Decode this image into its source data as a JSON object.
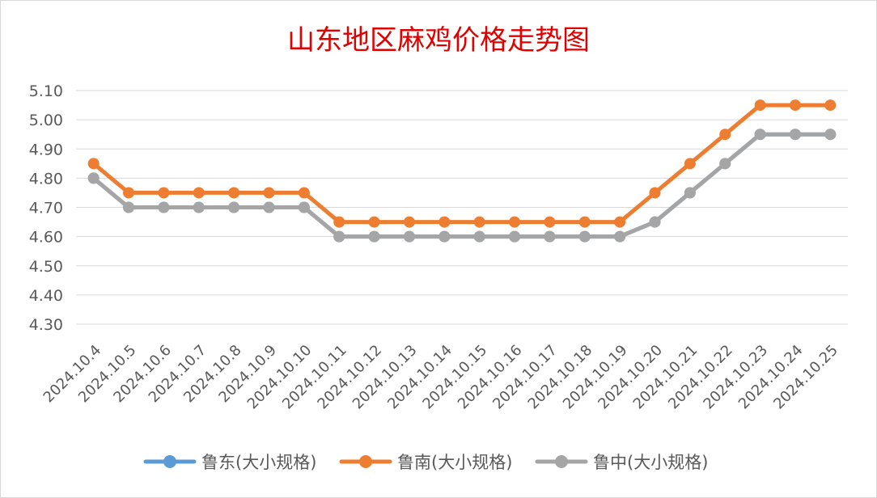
{
  "chart_data": {
    "type": "line",
    "title": "山东地区麻鸡价格走势图",
    "categories": [
      "2024.10.4",
      "2024.10.5",
      "2024.10.6",
      "2024.10.7",
      "2024.10.8",
      "2024.10.9",
      "2024.10.10",
      "2024.10.11",
      "2024.10.12",
      "2024.10.13",
      "2024.10.14",
      "2024.10.15",
      "2024.10.16",
      "2024.10.17",
      "2024.10.18",
      "2024.10.19",
      "2024.10.20",
      "2024.10.21",
      "2024.10.22",
      "2024.10.23",
      "2024.10.24",
      "2024.10.25"
    ],
    "yticks": [
      "4.30",
      "4.40",
      "4.50",
      "4.60",
      "4.70",
      "4.80",
      "4.90",
      "5.00",
      "5.10"
    ],
    "ylim": [
      4.3,
      5.1
    ],
    "grid": true,
    "legend_position": "bottom",
    "series": [
      {
        "name": "鲁东(大小规格)",
        "color": "#5b9bd5",
        "values": [
          4.8,
          4.7,
          4.7,
          4.7,
          4.7,
          4.7,
          4.7,
          4.6,
          4.6,
          4.6,
          4.6,
          4.6,
          4.6,
          4.6,
          4.6,
          4.6,
          4.65,
          4.75,
          4.85,
          4.95,
          4.95,
          4.95
        ]
      },
      {
        "name": "鲁南(大小规格)",
        "color": "#ed7d31",
        "values": [
          4.85,
          4.75,
          4.75,
          4.75,
          4.75,
          4.75,
          4.75,
          4.65,
          4.65,
          4.65,
          4.65,
          4.65,
          4.65,
          4.65,
          4.65,
          4.65,
          4.75,
          4.85,
          4.95,
          5.05,
          5.05,
          5.05
        ]
      },
      {
        "name": "鲁中(大小规格)",
        "color": "#a5a5a5",
        "values": [
          4.8,
          4.7,
          4.7,
          4.7,
          4.7,
          4.7,
          4.7,
          4.6,
          4.6,
          4.6,
          4.6,
          4.6,
          4.6,
          4.6,
          4.6,
          4.6,
          4.65,
          4.75,
          4.85,
          4.95,
          4.95,
          4.95
        ]
      }
    ]
  }
}
